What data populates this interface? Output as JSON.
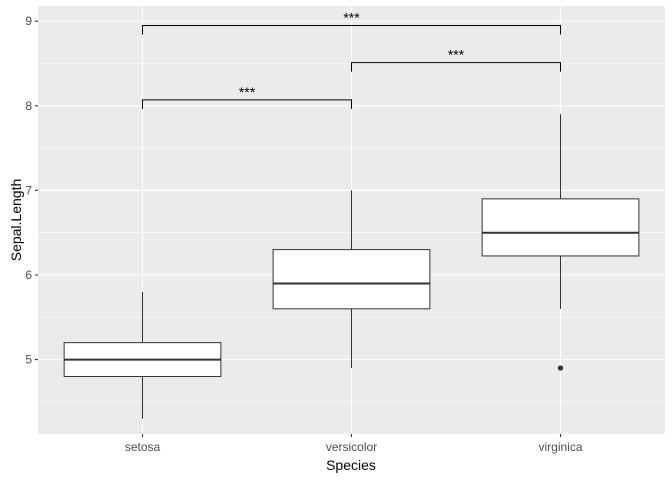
{
  "chart_data": {
    "type": "boxplot",
    "xlabel": "Species",
    "ylabel": "Sepal.Length",
    "ylim": [
      4.12,
      9.18
    ],
    "yticks": [
      5,
      6,
      7,
      8,
      9
    ],
    "grid": true,
    "categories": [
      "setosa",
      "versicolor",
      "virginica"
    ],
    "boxes": [
      {
        "category": "setosa",
        "min": 4.3,
        "q1": 4.8,
        "median": 5.0,
        "q3": 5.2,
        "max": 5.8,
        "outliers": []
      },
      {
        "category": "versicolor",
        "min": 4.9,
        "q1": 5.6,
        "median": 5.9,
        "q3": 6.3,
        "max": 7.0,
        "outliers": []
      },
      {
        "category": "virginica",
        "min": 5.6,
        "q1": 6.225,
        "median": 6.5,
        "q3": 6.9,
        "max": 7.9,
        "outliers": [
          4.9
        ]
      }
    ],
    "comparisons": [
      {
        "from": "setosa",
        "to": "versicolor",
        "y": 8.07,
        "label": "***"
      },
      {
        "from": "versicolor",
        "to": "virginica",
        "y": 8.51,
        "label": "***"
      },
      {
        "from": "setosa",
        "to": "virginica",
        "y": 8.95,
        "label": "***"
      }
    ],
    "colors": {
      "panel_background": "#ebebeb",
      "grid": "#ffffff",
      "box_fill": "#ffffff",
      "box_stroke": "#333333",
      "bracket": "#000000"
    }
  }
}
